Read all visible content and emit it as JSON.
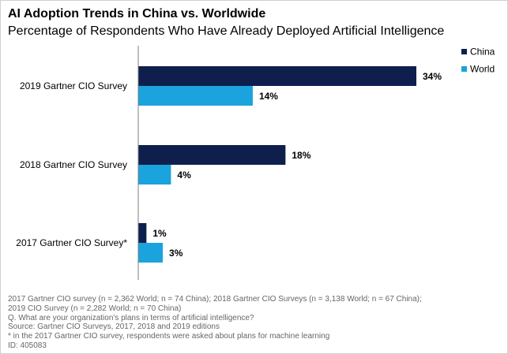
{
  "title": "AI Adoption Trends in China vs. Worldwide",
  "subtitle": "Percentage of Respondents Who Have Already Deployed Artificial Intelligence",
  "colors": {
    "china": "#0e1f4d",
    "world": "#1aa3dc",
    "axis": "#7f7f7f",
    "note": "#666666"
  },
  "chart_data": {
    "type": "bar",
    "orientation": "horizontal",
    "categories": [
      "2019 Gartner CIO Survey",
      "2018 Gartner CIO Survey",
      "2017 Gartner CIO Survey*"
    ],
    "series": [
      {
        "name": "China",
        "values": [
          34,
          18,
          1
        ],
        "labels": [
          "34%",
          "18%",
          "1%"
        ]
      },
      {
        "name": "World",
        "values": [
          14,
          4,
          3
        ],
        "labels": [
          "14%",
          "4%",
          "3%"
        ]
      }
    ],
    "xlim": [
      0,
      34
    ],
    "legend": "top-right",
    "xlabel": "",
    "ylabel": ""
  },
  "notes": {
    "line1": "2017 Gartner CIO survey (n = 2,362 World; n = 74 China); 2018 Gartner CIO Surveys (n = 3,138 World; n = 67 China);",
    "line2": "2019 CIO Survey (n = 2,282 World; n = 70 China)",
    "line3": "Q. What are your organization's plans in terms of artificial intelligence?",
    "line4": "Source: Gartner CIO Surveys, 2017, 2018 and 2019 editions",
    "line5": "* in the 2017 Gartner CIO survey, respondents were asked about plans for machine learning",
    "line6": "ID: 405083"
  }
}
